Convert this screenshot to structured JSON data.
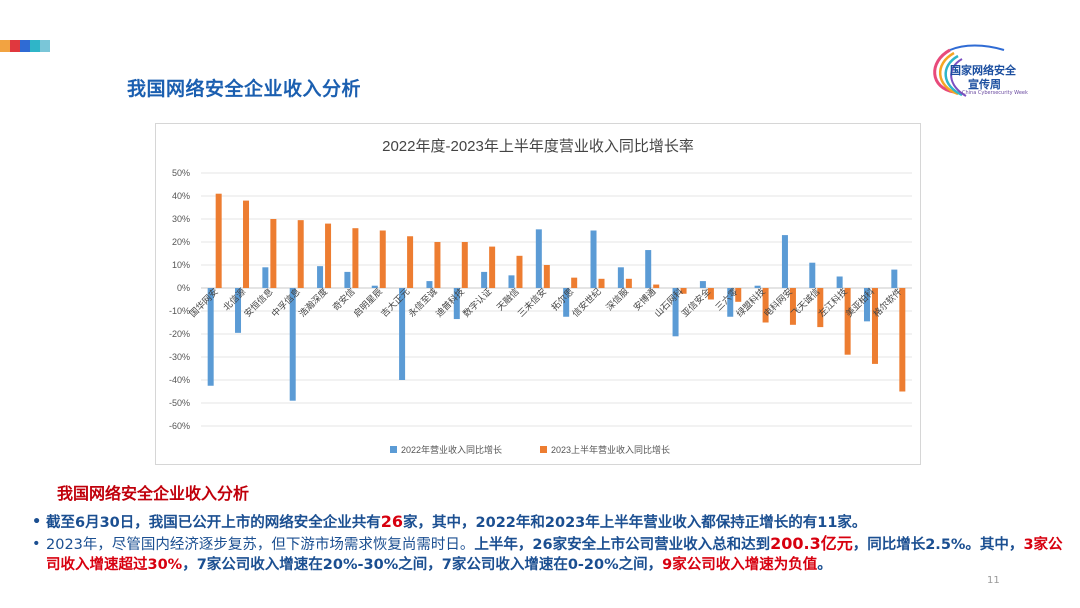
{
  "header": {
    "title": "我国网络安全企业收入分析",
    "logo_line1": "国家网络安全",
    "logo_line2": "宣传周",
    "logo_line3": "China Cybersecurity Week",
    "deco_colors": [
      "#f2a341",
      "#e0383e",
      "#2f6bd4",
      "#2fb5c8",
      "#7ac6d8"
    ]
  },
  "chart_data": {
    "type": "bar",
    "title": "2022年度-2023年上半年度营业收入同比增长率",
    "categories": [
      "国华网安",
      "北信源",
      "安恒信息",
      "中孚信息",
      "浩瀚深度",
      "奇安信",
      "启明星辰",
      "吉大正元",
      "永信至诚",
      "迪普科技",
      "数字认证",
      "天融信",
      "三未信安",
      "拓尔思",
      "信安世纪",
      "深信服",
      "安博通",
      "山石网科",
      "亚信安全",
      "三六零",
      "绿盟科技",
      "电科网安",
      "飞天诚信",
      "左江科技",
      "美亚柏科",
      "格尔软件"
    ],
    "series": [
      {
        "name": "2022年营业收入同比增长",
        "color": "#5b9bd5",
        "values": [
          -42.5,
          -19.5,
          9,
          -49,
          9.5,
          7,
          1,
          -40,
          3,
          -13.5,
          7,
          5.5,
          25.5,
          -12.5,
          25,
          9,
          16.5,
          -21,
          3,
          -12.5,
          1,
          23,
          11,
          5,
          -14.5,
          8
        ]
      },
      {
        "name": "2023上半年营业收入同比增长",
        "color": "#ed7d31",
        "values": [
          41,
          38,
          30,
          29.5,
          28,
          26,
          25,
          22.5,
          20,
          20,
          18,
          14,
          10,
          4.5,
          4,
          4,
          1.5,
          -2.5,
          -5,
          -6,
          -15,
          -16,
          -17,
          -29,
          -33,
          -45
        ]
      }
    ],
    "ylim": [
      -60,
      50
    ],
    "yticks": [
      50,
      40,
      30,
      20,
      10,
      0,
      -10,
      -20,
      -30,
      -40,
      -50,
      -60
    ],
    "ytick_labels": [
      "50%",
      "40%",
      "30%",
      "20%",
      "10%",
      "0%",
      "-10%",
      "-20%",
      "-30%",
      "-40%",
      "-50%",
      "-60%"
    ],
    "grid": true,
    "legend_position": "bottom"
  },
  "text": {
    "subheading": "我国网络安全企业收入分析",
    "b1_a": "截至6月30日，我国已公开上市的网络安全企业共有",
    "b1_b": "26",
    "b1_c": "家，其中，2022年和2023年上半年营业收入都保持正增长的有11家。",
    "b2_a": "2023年，尽管国内经济逐步复苏，但下游市场需求恢复尚需时日。",
    "b2_b": "上半年，26家安全上市公司营业收入总和达到",
    "b2_c": "200.3亿元",
    "b2_d": "，同比增长2.5%。其中，",
    "b2_e": "3家公司收入增速超过30%",
    "b2_f": "，7家公司收入增速在20%-30%之间，7家公司收入增速在0-20%之间，",
    "b2_g": "9家公司收入增速为负值",
    "b2_h": "。",
    "page_number": "11"
  }
}
